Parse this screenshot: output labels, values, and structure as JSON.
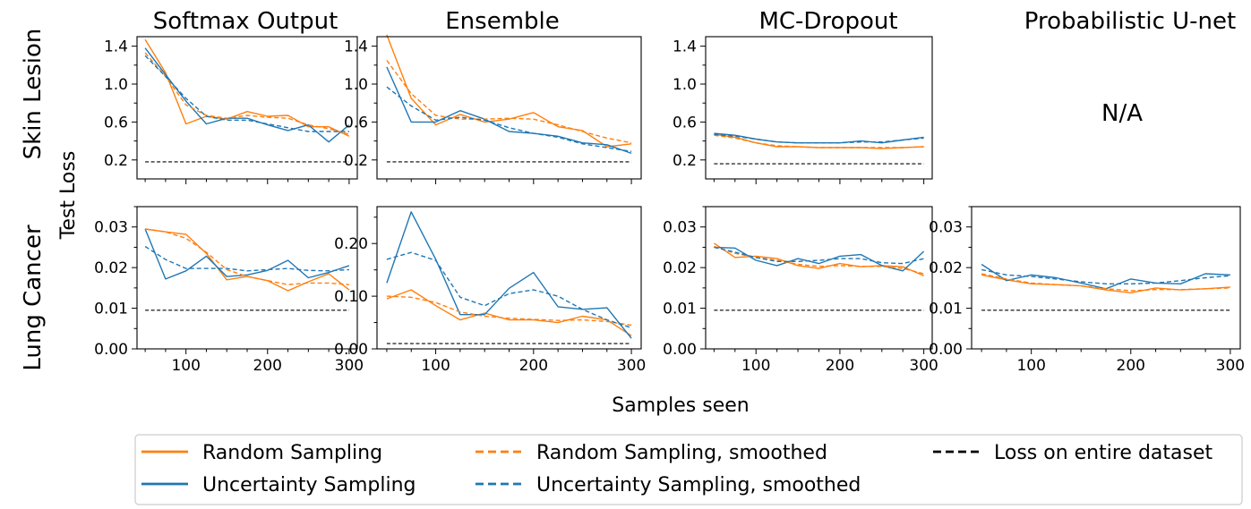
{
  "figure": {
    "xlabel": "Samples seen",
    "ylabel": "Test Loss",
    "row_labels": [
      "Skin Lesion",
      "Lung Cancer"
    ],
    "column_titles": [
      "Softmax Output",
      "Ensemble",
      "MC-Dropout",
      "Probabilistic U-net"
    ],
    "na_text": "N/A",
    "colors": {
      "random": "#ff7f0e",
      "uncertainty": "#1f77b4",
      "baseline": "#000000"
    },
    "legend": [
      {
        "label": "Random Sampling",
        "series": "random",
        "dash": false
      },
      {
        "label": "Uncertainty Sampling",
        "series": "uncertainty",
        "dash": false
      },
      {
        "label": "Random Sampling, smoothed",
        "series": "random",
        "dash": true
      },
      {
        "label": "Uncertainty Sampling, smoothed",
        "series": "uncertainty",
        "dash": true
      },
      {
        "label": "Loss on entire dataset",
        "series": "baseline",
        "dash": true
      }
    ],
    "legend_location": "bottom-center"
  },
  "chart_data": [
    {
      "type": "line",
      "name": "softmax-skin",
      "row": 0,
      "col": 0,
      "x": [
        50,
        75,
        100,
        125,
        150,
        175,
        200,
        225,
        250,
        275,
        300
      ],
      "xlim": [
        40,
        310
      ],
      "ylim": [
        0.0,
        1.5
      ],
      "xticks": [
        100,
        200,
        300
      ],
      "xtick_labels": [
        "100",
        "200",
        "300"
      ],
      "yticks": [
        0.2,
        0.6,
        1.0,
        1.4
      ],
      "ytick_labels": [
        "0.2",
        "0.6",
        "1.0",
        "1.4"
      ],
      "series": [
        {
          "key": "random",
          "values": [
            1.47,
            1.12,
            0.58,
            0.66,
            0.63,
            0.71,
            0.66,
            0.67,
            0.55,
            0.55,
            0.45
          ]
        },
        {
          "key": "uncertainty",
          "values": [
            1.38,
            1.1,
            0.82,
            0.58,
            0.64,
            0.64,
            0.57,
            0.51,
            0.57,
            0.39,
            0.57
          ]
        },
        {
          "key": "random_smoothed",
          "values": [
            1.33,
            1.08,
            0.78,
            0.67,
            0.64,
            0.67,
            0.65,
            0.64,
            0.57,
            0.53,
            0.47
          ]
        },
        {
          "key": "uncertainty_smoothed",
          "values": [
            1.3,
            1.08,
            0.85,
            0.66,
            0.62,
            0.62,
            0.58,
            0.54,
            0.5,
            0.5,
            0.5
          ]
        }
      ],
      "baseline": 0.18
    },
    {
      "type": "line",
      "name": "ensemble-skin",
      "row": 0,
      "col": 1,
      "x": [
        50,
        75,
        100,
        125,
        150,
        175,
        200,
        225,
        250,
        275,
        300
      ],
      "xlim": [
        40,
        310
      ],
      "ylim": [
        0.0,
        1.5
      ],
      "xticks": [
        100,
        200,
        300
      ],
      "xtick_labels": [
        "100",
        "200",
        "300"
      ],
      "yticks": [
        0.2,
        0.6,
        1.0,
        1.4
      ],
      "ytick_labels": [
        "0.2",
        "0.6",
        "1.0",
        "1.4"
      ],
      "series": [
        {
          "key": "random",
          "values": [
            1.52,
            0.85,
            0.57,
            0.68,
            0.6,
            0.63,
            0.7,
            0.55,
            0.51,
            0.34,
            0.37
          ]
        },
        {
          "key": "uncertainty",
          "values": [
            1.18,
            0.6,
            0.6,
            0.72,
            0.63,
            0.5,
            0.48,
            0.45,
            0.38,
            0.36,
            0.27
          ]
        },
        {
          "key": "random_smoothed",
          "values": [
            1.25,
            0.9,
            0.67,
            0.63,
            0.63,
            0.64,
            0.63,
            0.57,
            0.5,
            0.43,
            0.38
          ]
        },
        {
          "key": "uncertainty_smoothed",
          "values": [
            0.97,
            0.77,
            0.62,
            0.65,
            0.62,
            0.54,
            0.48,
            0.44,
            0.37,
            0.33,
            0.29
          ]
        }
      ],
      "baseline": 0.18
    },
    {
      "type": "line",
      "name": "mcdropout-skin",
      "row": 0,
      "col": 2,
      "x": [
        50,
        75,
        100,
        125,
        150,
        175,
        200,
        225,
        250,
        275,
        300
      ],
      "xlim": [
        40,
        310
      ],
      "ylim": [
        0.0,
        1.5
      ],
      "xticks": [
        100,
        200,
        300
      ],
      "xtick_labels": [
        "100",
        "200",
        "300"
      ],
      "yticks": [
        0.2,
        0.6,
        1.0,
        1.4
      ],
      "ytick_labels": [
        "0.2",
        "0.6",
        "1.0",
        "1.4"
      ],
      "series": [
        {
          "key": "random",
          "values": [
            0.47,
            0.44,
            0.38,
            0.34,
            0.34,
            0.33,
            0.33,
            0.33,
            0.32,
            0.33,
            0.34
          ]
        },
        {
          "key": "uncertainty",
          "values": [
            0.48,
            0.46,
            0.42,
            0.39,
            0.38,
            0.38,
            0.38,
            0.4,
            0.38,
            0.41,
            0.44
          ]
        },
        {
          "key": "random_smoothed",
          "values": [
            0.46,
            0.43,
            0.38,
            0.35,
            0.34,
            0.33,
            0.33,
            0.33,
            0.33,
            0.33,
            0.34
          ]
        },
        {
          "key": "uncertainty_smoothed",
          "values": [
            0.47,
            0.45,
            0.42,
            0.39,
            0.38,
            0.38,
            0.38,
            0.39,
            0.39,
            0.41,
            0.43
          ]
        }
      ],
      "baseline": 0.16
    },
    {
      "type": "line",
      "name": "softmax-lung",
      "row": 1,
      "col": 0,
      "x": [
        50,
        75,
        100,
        125,
        150,
        175,
        200,
        225,
        250,
        275,
        300
      ],
      "xlim": [
        40,
        310
      ],
      "ylim": [
        0.0,
        0.035
      ],
      "xticks": [
        100,
        200,
        300
      ],
      "xtick_labels": [
        "100",
        "200",
        "300"
      ],
      "yticks": [
        0.0,
        0.01,
        0.02,
        0.03
      ],
      "ytick_labels": [
        "0.00",
        "0.01",
        "0.02",
        "0.03"
      ],
      "series": [
        {
          "key": "random",
          "values": [
            0.0295,
            0.0288,
            0.0282,
            0.0235,
            0.017,
            0.0178,
            0.0168,
            0.0143,
            0.0165,
            0.0185,
            0.0145
          ]
        },
        {
          "key": "uncertainty",
          "values": [
            0.0295,
            0.0172,
            0.0192,
            0.0228,
            0.0178,
            0.0182,
            0.0193,
            0.0218,
            0.0175,
            0.0188,
            0.0205
          ]
        },
        {
          "key": "random_smoothed",
          "values": [
            0.0295,
            0.0288,
            0.0272,
            0.0238,
            0.0195,
            0.0178,
            0.0168,
            0.0158,
            0.0162,
            0.0162,
            0.0158
          ]
        },
        {
          "key": "uncertainty_smoothed",
          "values": [
            0.0252,
            0.022,
            0.0198,
            0.0198,
            0.0198,
            0.0192,
            0.0195,
            0.0198,
            0.0193,
            0.0192,
            0.0195
          ]
        }
      ],
      "baseline": 0.0095
    },
    {
      "type": "line",
      "name": "ensemble-lung",
      "row": 1,
      "col": 1,
      "x": [
        50,
        75,
        100,
        125,
        150,
        175,
        200,
        225,
        250,
        275,
        300
      ],
      "xlim": [
        40,
        310
      ],
      "ylim": [
        0.0,
        0.27
      ],
      "xticks": [
        100,
        200,
        300
      ],
      "xtick_labels": [
        "100",
        "200",
        "300"
      ],
      "yticks": [
        0.0,
        0.1,
        0.2
      ],
      "ytick_labels": [
        "0.00",
        "0.10",
        "0.20"
      ],
      "series": [
        {
          "key": "random",
          "values": [
            0.095,
            0.112,
            0.082,
            0.055,
            0.068,
            0.055,
            0.055,
            0.05,
            0.062,
            0.055,
            0.025
          ]
        },
        {
          "key": "uncertainty",
          "values": [
            0.125,
            0.26,
            0.17,
            0.065,
            0.065,
            0.115,
            0.145,
            0.08,
            0.075,
            0.078,
            0.02
          ]
        },
        {
          "key": "random_smoothed",
          "values": [
            0.1,
            0.098,
            0.088,
            0.07,
            0.062,
            0.058,
            0.056,
            0.054,
            0.055,
            0.052,
            0.045
          ]
        },
        {
          "key": "uncertainty_smoothed",
          "values": [
            0.17,
            0.183,
            0.168,
            0.098,
            0.082,
            0.105,
            0.112,
            0.1,
            0.075,
            0.055,
            0.04
          ]
        }
      ],
      "baseline": 0.01
    },
    {
      "type": "line",
      "name": "mcdropout-lung",
      "row": 1,
      "col": 2,
      "x": [
        50,
        75,
        100,
        125,
        150,
        175,
        200,
        225,
        250,
        275,
        300
      ],
      "xlim": [
        40,
        310
      ],
      "ylim": [
        0.0,
        0.035
      ],
      "xticks": [
        100,
        200,
        300
      ],
      "xtick_labels": [
        "100",
        "200",
        "300"
      ],
      "yticks": [
        0.0,
        0.01,
        0.02,
        0.03
      ],
      "ytick_labels": [
        "0.00",
        "0.01",
        "0.02",
        "0.03"
      ],
      "series": [
        {
          "key": "random",
          "values": [
            0.026,
            0.0225,
            0.0228,
            0.0222,
            0.0205,
            0.0198,
            0.021,
            0.0202,
            0.0205,
            0.0202,
            0.018
          ]
        },
        {
          "key": "uncertainty",
          "values": [
            0.025,
            0.0248,
            0.0218,
            0.0205,
            0.0222,
            0.021,
            0.0228,
            0.0232,
            0.0205,
            0.0192,
            0.024
          ]
        },
        {
          "key": "random_smoothed",
          "values": [
            0.0252,
            0.0235,
            0.0225,
            0.0218,
            0.0208,
            0.0203,
            0.0205,
            0.0203,
            0.0203,
            0.0198,
            0.0185
          ]
        },
        {
          "key": "uncertainty_smoothed",
          "values": [
            0.025,
            0.0238,
            0.0225,
            0.0215,
            0.0215,
            0.0218,
            0.0222,
            0.0222,
            0.0212,
            0.021,
            0.0222
          ]
        }
      ],
      "baseline": 0.0095
    },
    {
      "type": "line",
      "name": "probunet-lung",
      "row": 1,
      "col": 3,
      "x": [
        50,
        75,
        100,
        125,
        150,
        175,
        200,
        225,
        250,
        275,
        300
      ],
      "xlim": [
        40,
        310
      ],
      "ylim": [
        0.0,
        0.035
      ],
      "xticks": [
        100,
        200,
        300
      ],
      "xtick_labels": [
        "100",
        "200",
        "300"
      ],
      "yticks": [
        0.0,
        0.01,
        0.02,
        0.03
      ],
      "ytick_labels": [
        "0.00",
        "0.01",
        "0.02",
        "0.03"
      ],
      "series": [
        {
          "key": "random",
          "values": [
            0.0182,
            0.017,
            0.016,
            0.0158,
            0.0155,
            0.0145,
            0.0138,
            0.015,
            0.0145,
            0.0148,
            0.0152
          ]
        },
        {
          "key": "uncertainty",
          "values": [
            0.0208,
            0.0168,
            0.0182,
            0.0175,
            0.0162,
            0.0148,
            0.0172,
            0.0162,
            0.016,
            0.0185,
            0.0182
          ]
        },
        {
          "key": "random_smoothed",
          "values": [
            0.0185,
            0.0172,
            0.0162,
            0.0158,
            0.0155,
            0.0148,
            0.0143,
            0.0146,
            0.0146,
            0.0148,
            0.015
          ]
        },
        {
          "key": "uncertainty_smoothed",
          "values": [
            0.0195,
            0.0182,
            0.0178,
            0.0172,
            0.0165,
            0.016,
            0.016,
            0.0162,
            0.0168,
            0.0175,
            0.018
          ]
        }
      ],
      "baseline": 0.0095
    }
  ]
}
